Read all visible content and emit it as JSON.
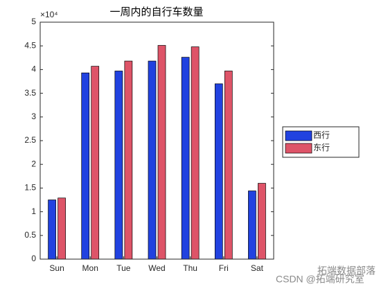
{
  "chart_data": {
    "type": "bar",
    "title": "一周内的自行车数量",
    "exponent_label": "×10⁴",
    "categories": [
      "Sun",
      "Mon",
      "Tue",
      "Wed",
      "Thu",
      "Fri",
      "Sat"
    ],
    "series": [
      {
        "name": "西行",
        "color": "#2142e0",
        "values": [
          1.25,
          3.93,
          3.97,
          4.18,
          4.26,
          3.7,
          1.44
        ]
      },
      {
        "name": "东行",
        "color": "#de5468",
        "values": [
          1.29,
          4.07,
          4.18,
          4.51,
          4.48,
          3.97,
          1.6
        ]
      }
    ],
    "ylim": [
      0,
      5
    ],
    "yticks": [
      0,
      0.5,
      1,
      1.5,
      2,
      2.5,
      3,
      3.5,
      4,
      4.5,
      5
    ],
    "grid": false,
    "legend": "east"
  },
  "watermark": {
    "channel": "拓端数据部落",
    "source": "CSDN @拓端研究室"
  }
}
